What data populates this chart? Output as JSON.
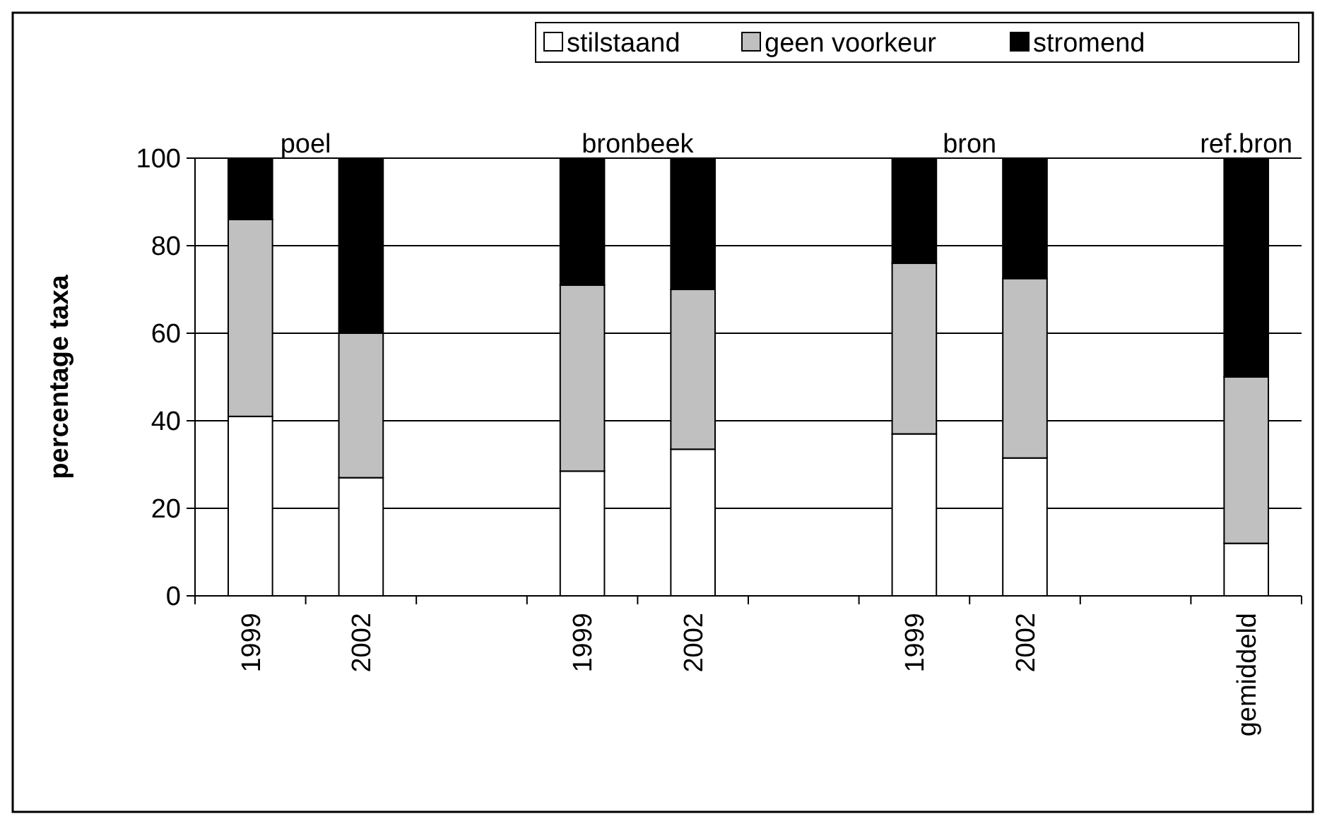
{
  "chart_data": {
    "type": "bar",
    "stacked": true,
    "ylabel": "percentage taxa",
    "categories": [
      "1999",
      "2002",
      null,
      "1999",
      "2002",
      null,
      "1999",
      "2002",
      null,
      "gemiddeld"
    ],
    "series": [
      {
        "name": "stilstaand",
        "color": "#ffffff",
        "values": [
          41,
          27,
          null,
          28.5,
          33.5,
          null,
          37,
          31.5,
          null,
          12
        ]
      },
      {
        "name": "geen voorkeur",
        "color": "#c0c0c0",
        "values": [
          45,
          33,
          null,
          42.5,
          36.5,
          null,
          39,
          41,
          null,
          38
        ]
      },
      {
        "name": "stromend",
        "color": "#000000",
        "values": [
          14,
          40,
          null,
          29,
          30,
          null,
          24,
          27.5,
          null,
          50
        ]
      }
    ],
    "ylim": [
      0,
      100
    ],
    "yticks": [
      0,
      20,
      40,
      60,
      80,
      100
    ],
    "grid": "y",
    "legend": "top right",
    "annotations": [
      "poel",
      "bronbeek",
      "bron",
      "ref.bron"
    ]
  }
}
